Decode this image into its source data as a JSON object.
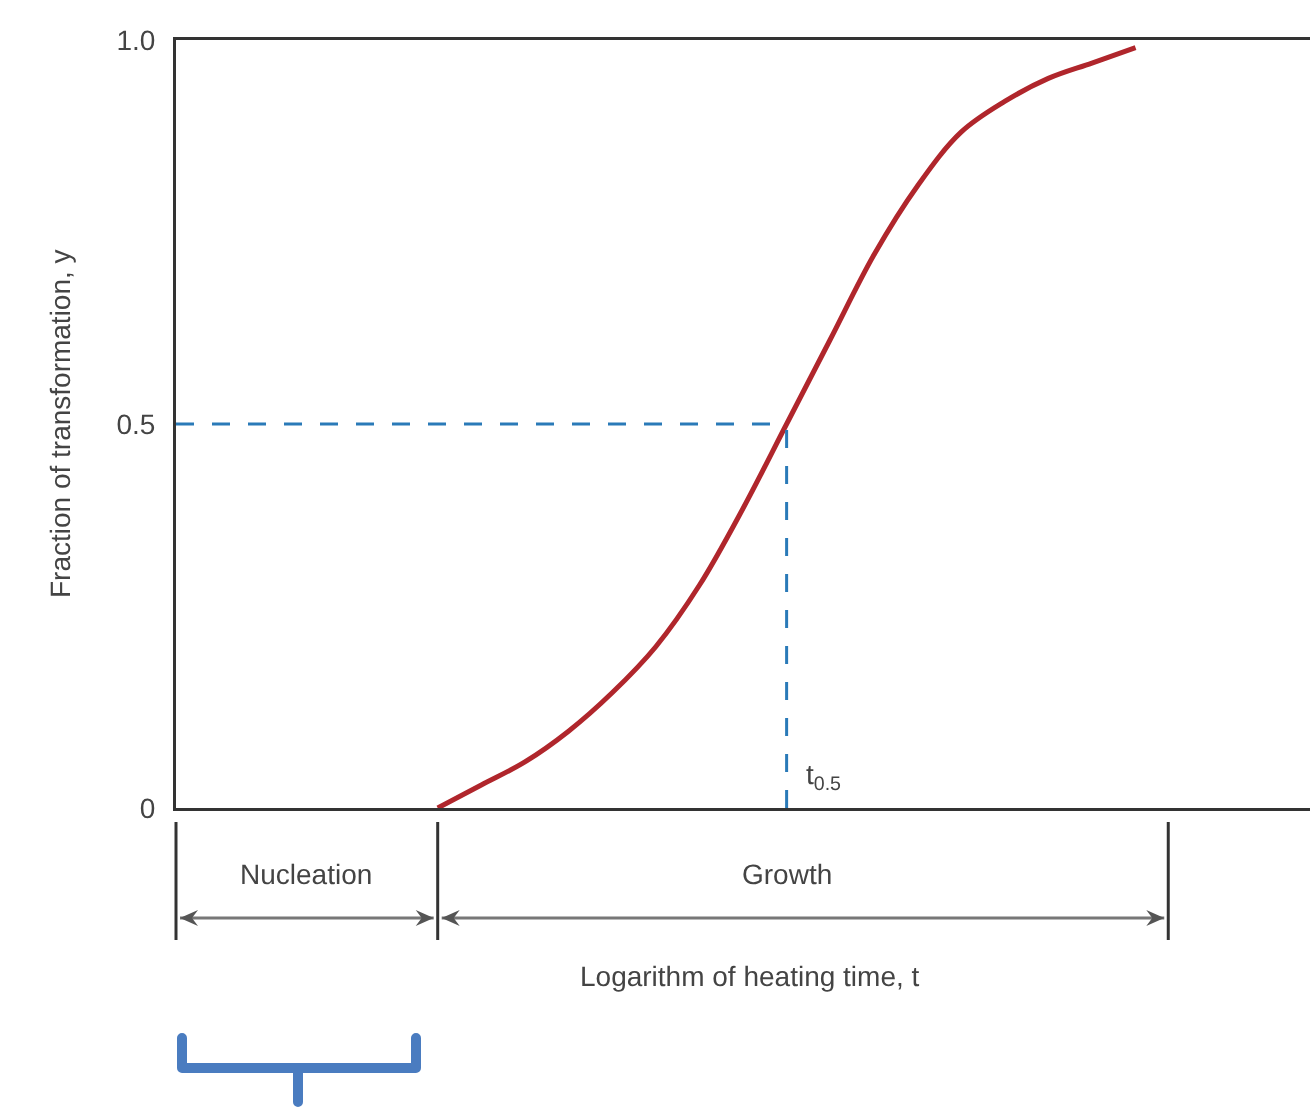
{
  "chart_data": {
    "type": "line",
    "xlabel": "Logarithm of heating time, t",
    "ylabel": "Fraction of transformation, y",
    "categories": [
      null,
      null,
      null,
      null,
      null,
      null,
      null,
      null,
      null,
      null,
      null,
      null,
      null,
      null,
      null,
      null,
      null,
      null,
      null,
      null,
      null,
      null,
      null,
      null,
      null,
      null,
      null
    ],
    "series": [
      {
        "color": "#b0262c",
        "values": [
          null,
          null,
          null,
          null,
          null,
          null,
          0,
          0.03,
          0.06,
          0.1,
          0.15,
          0.21,
          0.29,
          0.39,
          0.5,
          0.61,
          0.72,
          0.81,
          0.88,
          0.92,
          0.95,
          0.97,
          0.99,
          null,
          null,
          null,
          null
        ]
      },
      {
        "color": "#2a7ab8",
        "line_style": "dashed",
        "values": [
          0.5,
          0.5,
          0.5,
          0.5,
          0.5,
          0.5,
          0.5,
          0.5,
          0.5,
          0.5,
          0.5,
          0.5,
          0.5,
          0.5,
          0.5,
          null,
          null,
          null,
          null,
          null,
          null,
          null,
          null,
          null,
          null,
          null,
          null
        ]
      }
    ],
    "ylim": [
      0,
      1
    ],
    "yticks": [
      0,
      0.5,
      {
        "value": 1,
        "label": "1.0"
      }
    ],
    "tick_labels": "y",
    "annotations": [
      "t$_{0.5}$",
      "Nucleation",
      "Growth"
    ]
  }
}
